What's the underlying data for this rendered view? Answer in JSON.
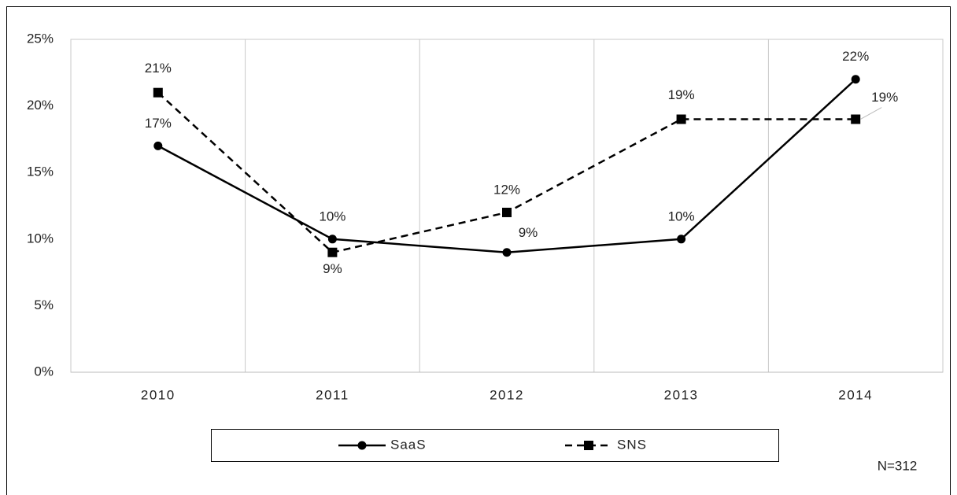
{
  "chart_data": {
    "type": "line",
    "categories": [
      "2010",
      "2011",
      "2012",
      "2013",
      "2014"
    ],
    "series": [
      {
        "name": "SaaS",
        "color": "#000000",
        "dash": "solid",
        "marker": "circle",
        "values": [
          17,
          10,
          9,
          10,
          22
        ],
        "value_labels": [
          "17%",
          "10%",
          "9%",
          "10%",
          "22%"
        ]
      },
      {
        "name": "SNS",
        "color": "#000000",
        "dash": "dashed",
        "marker": "square",
        "values": [
          21,
          9,
          12,
          19,
          19
        ],
        "value_labels": [
          "21%",
          "9%",
          "12%",
          "19%",
          "19%"
        ]
      }
    ],
    "ylim": [
      0,
      25
    ],
    "yticks": [
      {
        "value": 0,
        "label": "0%"
      },
      {
        "value": 5,
        "label": "5%"
      },
      {
        "value": 10,
        "label": "10%"
      },
      {
        "value": 15,
        "label": "15%"
      },
      {
        "value": 20,
        "label": "20%"
      },
      {
        "value": 25,
        "label": "25%"
      }
    ],
    "grid": true,
    "legend": "bottom",
    "annotation": "N=312"
  }
}
